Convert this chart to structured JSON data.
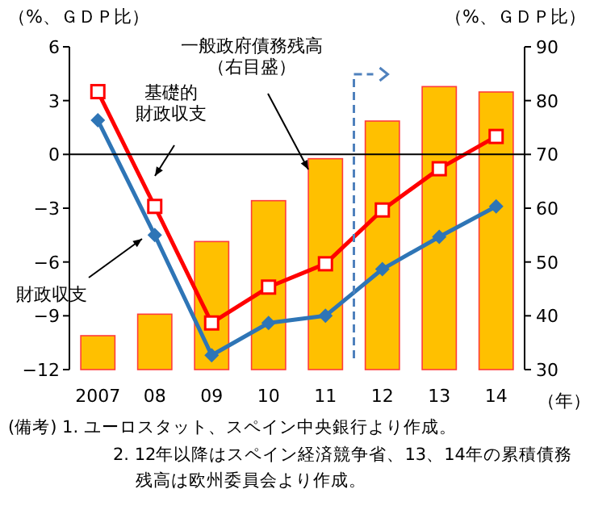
{
  "chart_data": {
    "type": "bar",
    "x": [
      2007,
      2008,
      2009,
      2010,
      2011,
      2012,
      2013,
      2014
    ],
    "xlim": [
      2006.5,
      2014.5
    ],
    "xticks": [
      2007,
      {
        "value": 2008,
        "label": "08"
      },
      {
        "value": 2009,
        "label": "09"
      },
      {
        "value": 2010,
        "label": "10"
      },
      {
        "value": 2011,
        "label": "11"
      },
      {
        "value": 2012,
        "label": "12"
      },
      {
        "value": 2013,
        "label": "13"
      },
      {
        "value": 2014,
        "label": "14"
      }
    ],
    "xlabel": "（年）",
    "ylabel": "（%、ＧＤＰ比）",
    "y2label": "（%、ＧＤＰ比）",
    "ylim": [
      -12,
      6
    ],
    "yticks": [
      -12,
      -9,
      -6,
      -3,
      0,
      3,
      6
    ],
    "y2lim": [
      30,
      90
    ],
    "y2ticks": [
      30,
      40,
      50,
      60,
      70,
      80,
      90
    ],
    "grid": false,
    "legend": false,
    "series": [
      {
        "name": "一般政府債務残高（右目盛）",
        "axis": "y2",
        "color": "#ffc000",
        "values": [
          36.3,
          40.3,
          53.8,
          61.4,
          69.2,
          76.2,
          82.6,
          81.6
        ]
      },
      {
        "name": "基礎的財政収支",
        "type": "line",
        "color": "#ff0000",
        "marker": "square",
        "line_style": "solid",
        "values": [
          3.5,
          -2.9,
          -9.4,
          -7.4,
          -6.1,
          -3.1,
          -0.8,
          1.0
        ]
      },
      {
        "name": "財政収支",
        "type": "line",
        "color": "#2e75b6",
        "marker": "diamond",
        "line_style": "solid",
        "values": [
          1.9,
          -4.5,
          -11.2,
          -9.4,
          -9.0,
          -6.4,
          -4.6,
          -2.9
        ]
      }
    ],
    "ref_lines": [
      {
        "axis": "y",
        "value": 0,
        "color": "#000000",
        "line_style": "solid"
      },
      {
        "axis": "x",
        "value": 2011.5,
        "color": "#4f81bd",
        "line_style": "dashed"
      }
    ],
    "annotations": [
      "(備考) 1. ユーロスタット、スペイン中央銀行より作成。",
      "2. 12年以降はスペイン経済競争省、13、14年の累積債務残高は欧州委員会より作成。"
    ]
  }
}
